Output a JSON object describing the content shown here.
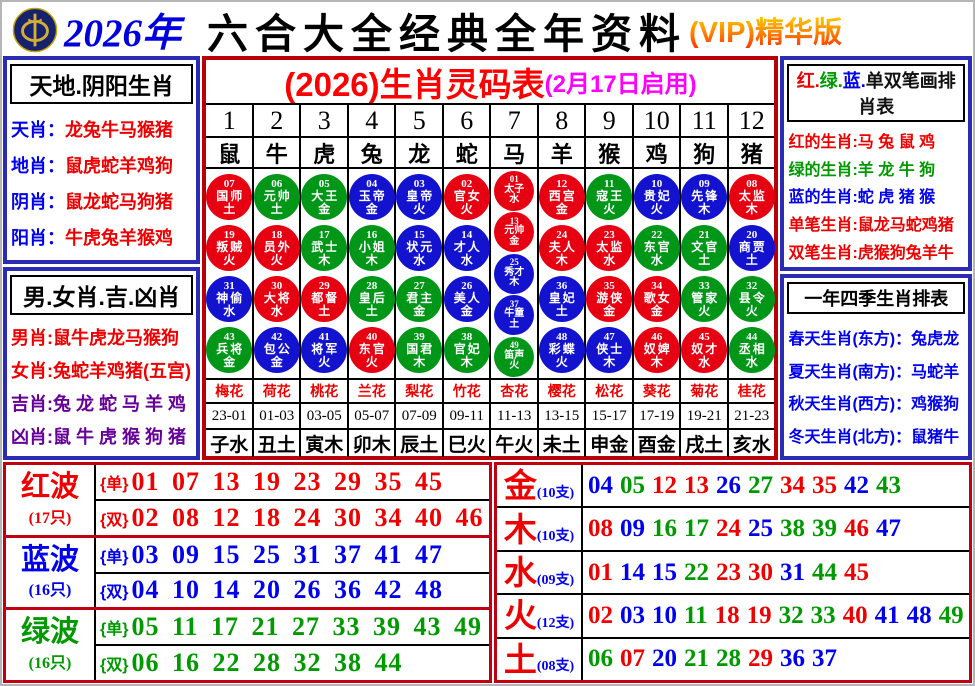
{
  "colors": {
    "red": "#ee0000",
    "green": "#009900",
    "blue": "#0000ee",
    "purple": "#660099",
    "magenta": "#ff00ff",
    "black": "#111111",
    "circle_red": "#e60012",
    "circle_green": "#009618",
    "circle_blue": "#1212cf",
    "navy_border": "#2b2bb4",
    "red_border": "#c00010",
    "vip_orange": "#ff8800"
  },
  "header": {
    "year": "2026年",
    "title": "六合大全经典全年资料",
    "vip": "(VIP)精华版"
  },
  "left_sidebar": {
    "box1": {
      "title": "天地.阴阳生肖",
      "rows": [
        {
          "label": "天肖",
          "value": "龙兔牛马猴猪"
        },
        {
          "label": "地肖",
          "value": "鼠虎蛇羊鸡狗"
        },
        {
          "label": "阴肖",
          "value": "鼠龙蛇马狗猪"
        },
        {
          "label": "阳肖",
          "value": "牛虎兔羊猴鸡"
        }
      ]
    },
    "box2": {
      "title": "男.女肖.吉.凶肖",
      "rows": [
        {
          "label": "男肖",
          "value": "鼠牛虎龙马猴狗",
          "color": "red"
        },
        {
          "label": "女肖",
          "value": "兔蛇羊鸡猪(五宫)",
          "color": "red"
        },
        {
          "label": "吉肖",
          "value": "兔 龙 蛇 马 羊 鸡",
          "color": "purple"
        },
        {
          "label": "凶肖",
          "value": "鼠 牛 虎 猴 狗 猪",
          "color": "purple"
        }
      ]
    }
  },
  "zodiac_table": {
    "title_main": "(2026)生肖灵码表",
    "title_note": "(2月17日启用)",
    "columns": [
      {
        "num": "1",
        "zodiac": "鼠",
        "flower": "梅花",
        "time": "23-01",
        "branch": "子水",
        "circles": [
          {
            "n": "07",
            "t": "国师",
            "e": "土",
            "c": "red"
          },
          {
            "n": "19",
            "t": "叛贼",
            "e": "火",
            "c": "red"
          },
          {
            "n": "31",
            "t": "神偷",
            "e": "水",
            "c": "blue"
          },
          {
            "n": "43",
            "t": "兵将",
            "e": "金",
            "c": "green"
          }
        ]
      },
      {
        "num": "2",
        "zodiac": "牛",
        "flower": "荷花",
        "time": "01-03",
        "branch": "丑土",
        "circles": [
          {
            "n": "06",
            "t": "元帅",
            "e": "土",
            "c": "green"
          },
          {
            "n": "18",
            "t": "员外",
            "e": "火",
            "c": "red"
          },
          {
            "n": "30",
            "t": "大将",
            "e": "水",
            "c": "red"
          },
          {
            "n": "42",
            "t": "包公",
            "e": "金",
            "c": "blue"
          }
        ]
      },
      {
        "num": "3",
        "zodiac": "虎",
        "flower": "桃花",
        "time": "03-05",
        "branch": "寅木",
        "circles": [
          {
            "n": "05",
            "t": "大王",
            "e": "金",
            "c": "green"
          },
          {
            "n": "17",
            "t": "武士",
            "e": "木",
            "c": "green"
          },
          {
            "n": "29",
            "t": "都督",
            "e": "土",
            "c": "red"
          },
          {
            "n": "41",
            "t": "将军",
            "e": "火",
            "c": "blue"
          }
        ]
      },
      {
        "num": "4",
        "zodiac": "兔",
        "flower": "兰花",
        "time": "05-07",
        "branch": "卯木",
        "circles": [
          {
            "n": "04",
            "t": "玉帝",
            "e": "金",
            "c": "blue"
          },
          {
            "n": "16",
            "t": "小姐",
            "e": "木",
            "c": "green"
          },
          {
            "n": "28",
            "t": "皇后",
            "e": "土",
            "c": "green"
          },
          {
            "n": "40",
            "t": "东官",
            "e": "火",
            "c": "red"
          }
        ]
      },
      {
        "num": "5",
        "zodiac": "龙",
        "flower": "梨花",
        "time": "07-09",
        "branch": "辰土",
        "circles": [
          {
            "n": "03",
            "t": "皇帝",
            "e": "火",
            "c": "blue"
          },
          {
            "n": "15",
            "t": "状元",
            "e": "水",
            "c": "blue"
          },
          {
            "n": "27",
            "t": "君主",
            "e": "金",
            "c": "green"
          },
          {
            "n": "39",
            "t": "国君",
            "e": "木",
            "c": "green"
          }
        ]
      },
      {
        "num": "6",
        "zodiac": "蛇",
        "flower": "竹花",
        "time": "09-11",
        "branch": "巳火",
        "circles": [
          {
            "n": "02",
            "t": "官女",
            "e": "火",
            "c": "red"
          },
          {
            "n": "14",
            "t": "才人",
            "e": "水",
            "c": "blue"
          },
          {
            "n": "26",
            "t": "美人",
            "e": "金",
            "c": "blue"
          },
          {
            "n": "38",
            "t": "官妃",
            "e": "木",
            "c": "green"
          }
        ]
      },
      {
        "num": "7",
        "zodiac": "马",
        "flower": "杏花",
        "time": "11-13",
        "branch": "午火",
        "small": true,
        "circles": [
          {
            "n": "01",
            "t": "太子",
            "e": "水",
            "c": "red"
          },
          {
            "n": "13",
            "t": "元帅",
            "e": "金",
            "c": "red"
          },
          {
            "n": "25",
            "t": "秀才",
            "e": "木",
            "c": "blue"
          },
          {
            "n": "37",
            "t": "牛童",
            "e": "土",
            "c": "blue"
          },
          {
            "n": "49",
            "t": "笛声",
            "e": "火",
            "c": "green"
          }
        ]
      },
      {
        "num": "8",
        "zodiac": "羊",
        "flower": "樱花",
        "time": "13-15",
        "branch": "未土",
        "circles": [
          {
            "n": "12",
            "t": "西宫",
            "e": "金",
            "c": "red"
          },
          {
            "n": "24",
            "t": "夫人",
            "e": "木",
            "c": "red"
          },
          {
            "n": "36",
            "t": "皇妃",
            "e": "土",
            "c": "blue"
          },
          {
            "n": "48",
            "t": "彩蝶",
            "e": "火",
            "c": "blue"
          }
        ]
      },
      {
        "num": "9",
        "zodiac": "猴",
        "flower": "松花",
        "time": "15-17",
        "branch": "申金",
        "circles": [
          {
            "n": "11",
            "t": "寇王",
            "e": "火",
            "c": "green"
          },
          {
            "n": "23",
            "t": "太监",
            "e": "水",
            "c": "red"
          },
          {
            "n": "35",
            "t": "游侠",
            "e": "金",
            "c": "red"
          },
          {
            "n": "47",
            "t": "侠士",
            "e": "木",
            "c": "blue"
          }
        ]
      },
      {
        "num": "10",
        "zodiac": "鸡",
        "flower": "葵花",
        "time": "17-19",
        "branch": "酉金",
        "circles": [
          {
            "n": "10",
            "t": "贵妃",
            "e": "火",
            "c": "blue"
          },
          {
            "n": "22",
            "t": "东官",
            "e": "水",
            "c": "green"
          },
          {
            "n": "34",
            "t": "歌女",
            "e": "金",
            "c": "red"
          },
          {
            "n": "46",
            "t": "奴婢",
            "e": "木",
            "c": "red"
          }
        ]
      },
      {
        "num": "11",
        "zodiac": "狗",
        "flower": "菊花",
        "time": "19-21",
        "branch": "戌土",
        "circles": [
          {
            "n": "09",
            "t": "先锋",
            "e": "木",
            "c": "blue"
          },
          {
            "n": "21",
            "t": "文官",
            "e": "土",
            "c": "green"
          },
          {
            "n": "33",
            "t": "管家",
            "e": "火",
            "c": "green"
          },
          {
            "n": "45",
            "t": "奴才",
            "e": "水",
            "c": "red"
          }
        ]
      },
      {
        "num": "12",
        "zodiac": "猪",
        "flower": "桂花",
        "time": "21-23",
        "branch": "亥水",
        "circles": [
          {
            "n": "08",
            "t": "太监",
            "e": "木",
            "c": "red"
          },
          {
            "n": "20",
            "t": "商贾",
            "e": "土",
            "c": "blue"
          },
          {
            "n": "32",
            "t": "县令",
            "e": "火",
            "c": "green"
          },
          {
            "n": "44",
            "t": "丞相",
            "e": "水",
            "c": "green"
          }
        ]
      }
    ]
  },
  "right_sidebar": {
    "box1": {
      "title_parts": [
        {
          "text": "红.",
          "color": "red"
        },
        {
          "text": "绿.",
          "color": "green"
        },
        {
          "text": "蓝.",
          "color": "blue"
        },
        {
          "text": "单双笔画排肖表",
          "color": "black"
        }
      ],
      "rows": [
        {
          "label": "红的生肖",
          "value": "马 兔 鼠 鸡",
          "color": "red"
        },
        {
          "label": "绿的生肖",
          "value": "羊 龙 牛 狗",
          "color": "green"
        },
        {
          "label": "蓝的生肖",
          "value": "蛇 虎 猪 猴",
          "color": "blue"
        },
        {
          "label": "单笔生肖",
          "value": "鼠龙马蛇鸡猪",
          "color": "red"
        },
        {
          "label": "双笔生肖",
          "value": "虎猴狗兔羊牛",
          "color": "red"
        }
      ]
    },
    "box2": {
      "title": "一年四季生肖排表",
      "rows": [
        {
          "label": "春天生肖(东方)",
          "value": "兔虎龙",
          "color": "blue"
        },
        {
          "label": "夏天生肖(南方)",
          "value": "马蛇羊",
          "color": "blue"
        },
        {
          "label": "秋天生肖(西方)",
          "value": "鸡猴狗",
          "color": "blue"
        },
        {
          "label": "冬天生肖(北方)",
          "value": "鼠猪牛",
          "color": "blue"
        }
      ]
    }
  },
  "waves": [
    {
      "name": "红波",
      "count": "(17只)",
      "color": "red",
      "rows": [
        {
          "tag": "{单}",
          "nums": "01 07 13 19 23 29 35 45"
        },
        {
          "tag": "{双}",
          "nums": "02 08 12 18 24 30 34 40 46"
        }
      ]
    },
    {
      "name": "蓝波",
      "count": "(16只)",
      "color": "blue",
      "rows": [
        {
          "tag": "{单}",
          "nums": "03 09 15 25 31 37 41 47"
        },
        {
          "tag": "{双}",
          "nums": "04 10 14 20 26 36 42 48"
        }
      ]
    },
    {
      "name": "绿波",
      "count": "(16只)",
      "color": "green",
      "rows": [
        {
          "tag": "{单}",
          "nums": "05 11 17 21 27 33 39 43 49"
        },
        {
          "tag": "{双}",
          "nums": "06 16 22 28 32 38 44"
        }
      ]
    }
  ],
  "elements": [
    {
      "name": "金",
      "count": "(10支)",
      "nums": [
        [
          "04",
          "blue"
        ],
        [
          "05",
          "green"
        ],
        [
          "12",
          "red"
        ],
        [
          "13",
          "red"
        ],
        [
          "26",
          "blue"
        ],
        [
          "27",
          "green"
        ],
        [
          "34",
          "red"
        ],
        [
          "35",
          "red"
        ],
        [
          "42",
          "blue"
        ],
        [
          "43",
          "green"
        ]
      ]
    },
    {
      "name": "木",
      "count": "(10支)",
      "nums": [
        [
          "08",
          "red"
        ],
        [
          "09",
          "blue"
        ],
        [
          "16",
          "green"
        ],
        [
          "17",
          "green"
        ],
        [
          "24",
          "red"
        ],
        [
          "25",
          "blue"
        ],
        [
          "38",
          "green"
        ],
        [
          "39",
          "green"
        ],
        [
          "46",
          "red"
        ],
        [
          "47",
          "blue"
        ]
      ]
    },
    {
      "name": "水",
      "count": "(09支)",
      "nums": [
        [
          "01",
          "red"
        ],
        [
          "14",
          "blue"
        ],
        [
          "15",
          "blue"
        ],
        [
          "22",
          "green"
        ],
        [
          "23",
          "red"
        ],
        [
          "30",
          "red"
        ],
        [
          "31",
          "blue"
        ],
        [
          "44",
          "green"
        ],
        [
          "45",
          "red"
        ]
      ]
    },
    {
      "name": "火",
      "count": "(12支)",
      "nums": [
        [
          "02",
          "red"
        ],
        [
          "03",
          "blue"
        ],
        [
          "10",
          "blue"
        ],
        [
          "11",
          "green"
        ],
        [
          "18",
          "red"
        ],
        [
          "19",
          "red"
        ],
        [
          "32",
          "green"
        ],
        [
          "33",
          "green"
        ],
        [
          "40",
          "red"
        ],
        [
          "41",
          "blue"
        ],
        [
          "48",
          "blue"
        ],
        [
          "49",
          "green"
        ]
      ]
    },
    {
      "name": "土",
      "count": "(08支)",
      "nums": [
        [
          "06",
          "green"
        ],
        [
          "07",
          "red"
        ],
        [
          "20",
          "blue"
        ],
        [
          "21",
          "green"
        ],
        [
          "28",
          "green"
        ],
        [
          "29",
          "red"
        ],
        [
          "36",
          "blue"
        ],
        [
          "37",
          "blue"
        ]
      ]
    }
  ]
}
